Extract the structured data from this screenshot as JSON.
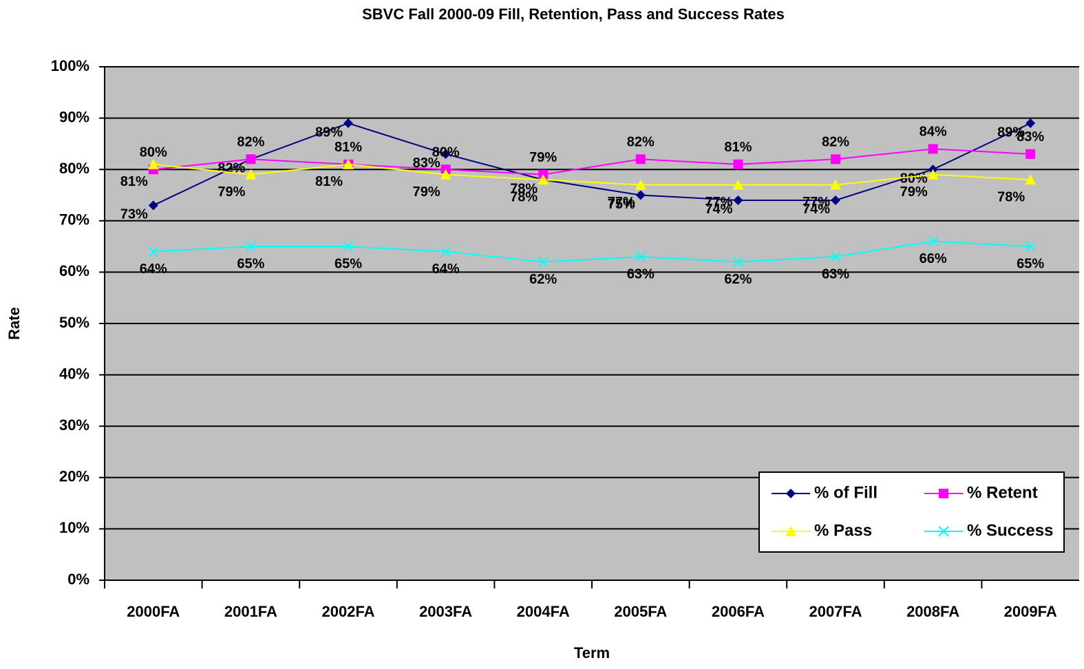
{
  "chart_data": {
    "type": "line",
    "title": "SBVC Fall 2000-09 Fill, Retention, Pass and Success Rates",
    "x_label": "Term",
    "y_label": "Rate",
    "categories": [
      "2000FA",
      "2001FA",
      "2002FA",
      "2003FA",
      "2004FA",
      "2005FA",
      "2006FA",
      "2007FA",
      "2008FA",
      "2009FA"
    ],
    "series": [
      {
        "name": "% of Fill",
        "color": "#000080",
        "marker": "diamond",
        "values": [
          73,
          82,
          89,
          83,
          78,
          75,
          74,
          74,
          80,
          89
        ],
        "value_labels": [
          "73%",
          "82%",
          "89%",
          "83%",
          "78%",
          "75%",
          "74%",
          "74%",
          "80%",
          "89%"
        ]
      },
      {
        "name": "% Retent",
        "color": "#ff00ff",
        "marker": "square",
        "values": [
          80,
          82,
          81,
          80,
          79,
          82,
          81,
          82,
          84,
          83
        ],
        "value_labels": [
          "80%",
          "82%",
          "81%",
          "80%",
          "79%",
          "82%",
          "81%",
          "82%",
          "84%",
          "83%"
        ]
      },
      {
        "name": "% Pass",
        "color": "#ffff00",
        "marker": "triangle",
        "values": [
          81,
          79,
          81,
          79,
          78,
          77,
          77,
          77,
          79,
          78
        ],
        "value_labels": [
          "81%",
          "79%",
          "81%",
          "79%",
          "78%",
          "77%",
          "77%",
          "77%",
          "79%",
          "78%"
        ]
      },
      {
        "name": "% Success",
        "color": "#00ffff",
        "marker": "x",
        "values": [
          64,
          65,
          65,
          64,
          62,
          63,
          62,
          63,
          66,
          65
        ],
        "value_labels": [
          "64%",
          "65%",
          "65%",
          "64%",
          "62%",
          "63%",
          "62%",
          "63%",
          "66%",
          "65%"
        ]
      }
    ],
    "ylim": [
      0,
      100
    ],
    "yticks": [
      {
        "value": 0,
        "label": "0%"
      },
      {
        "value": 10,
        "label": "10%"
      },
      {
        "value": 20,
        "label": "20%"
      },
      {
        "value": 30,
        "label": "30%"
      },
      {
        "value": 40,
        "label": "40%"
      },
      {
        "value": 50,
        "label": "50%"
      },
      {
        "value": 60,
        "label": "60%"
      },
      {
        "value": 70,
        "label": "70%"
      },
      {
        "value": 80,
        "label": "80%"
      },
      {
        "value": 90,
        "label": "90%"
      },
      {
        "value": 100,
        "label": "100%"
      }
    ],
    "grid": true,
    "legend": "lower right",
    "plot_background": "#c0c0c0"
  }
}
